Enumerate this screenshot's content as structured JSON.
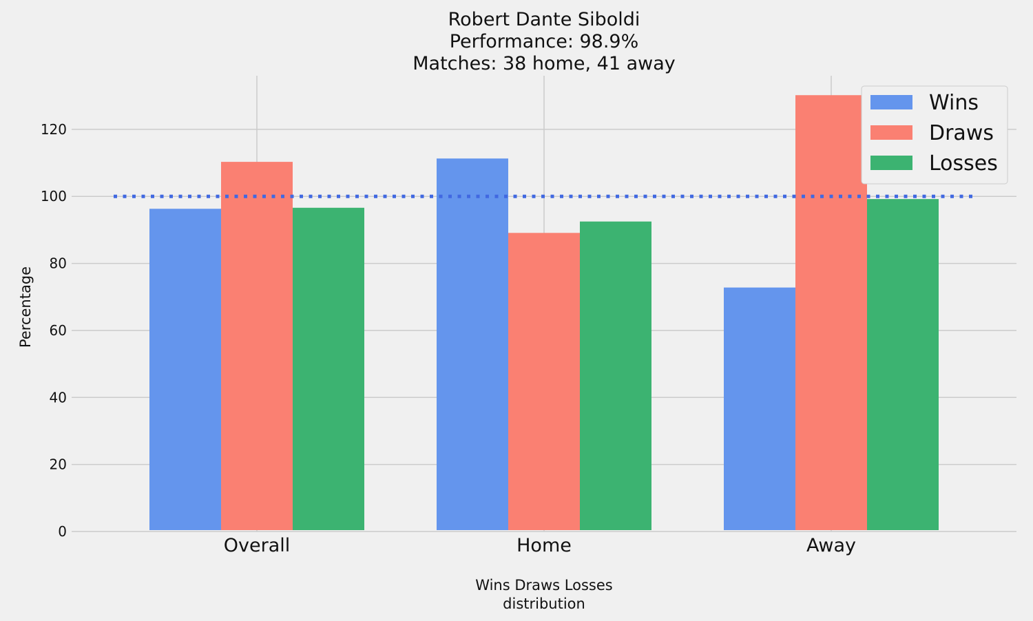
{
  "chart_data": {
    "type": "bar",
    "title": [
      "Robert Dante Siboldi",
      "Performance: 98.9%",
      "Matches: 38 home, 41 away"
    ],
    "xlabel": [
      "Wins Draws Losses",
      "distribution"
    ],
    "ylabel": "Percentage",
    "categories": [
      "Overall",
      "Home",
      "Away"
    ],
    "series": [
      {
        "name": "Wins",
        "values": [
          96.3,
          111.3,
          72.8
        ],
        "color": "#6495ed"
      },
      {
        "name": "Draws",
        "values": [
          110.3,
          89.1,
          130.2
        ],
        "color": "#fa8072"
      },
      {
        "name": "Losses",
        "values": [
          96.6,
          92.5,
          99.2
        ],
        "color": "#3cb371"
      }
    ],
    "reference_line": {
      "value": 100,
      "style": "dotted",
      "color": "#4169e1"
    },
    "yticks": [
      0,
      20,
      40,
      60,
      80,
      100,
      120
    ],
    "ylim": [
      0,
      136
    ],
    "grid": true,
    "legend_position": "top-right"
  }
}
